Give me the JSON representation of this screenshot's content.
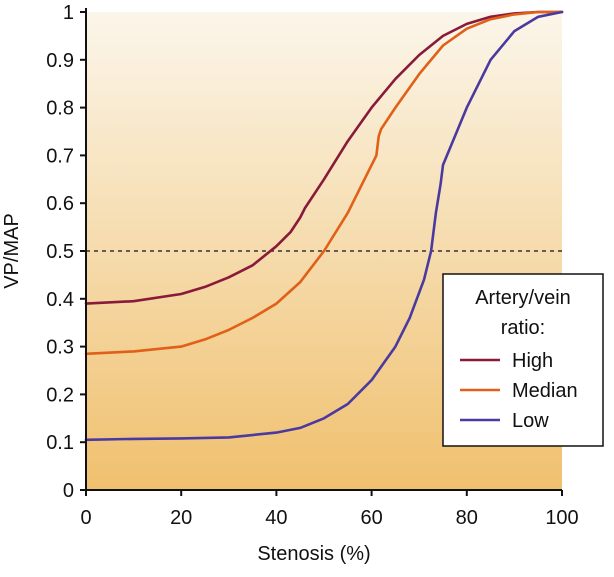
{
  "chart_data": {
    "type": "line",
    "title": "",
    "xlabel": "Stenosis (%)",
    "ylabel": "VP/MAP",
    "xlim": [
      0,
      100
    ],
    "ylim": [
      0,
      1
    ],
    "x_ticks": [
      "0",
      "20",
      "40",
      "60",
      "80",
      "100"
    ],
    "y_ticks": [
      "0",
      "0.1",
      "0.2",
      "0.3",
      "0.4",
      "0.5",
      "0.6",
      "0.7",
      "0.8",
      "0.9",
      "1"
    ],
    "reference_line": {
      "y": 0.5,
      "style": "dashed",
      "color": "#333333"
    },
    "grid": false,
    "legend": {
      "title_lines": [
        "Artery/vein",
        "ratio:"
      ],
      "position": "right",
      "entries": [
        "High",
        "Median",
        "Low"
      ]
    },
    "background": {
      "top": "#fbf6ea",
      "bottom": "#f0c06e"
    },
    "series": [
      {
        "name": "High",
        "color": "#8a1a3a",
        "x": [
          0,
          10,
          20,
          25,
          30,
          35,
          40,
          43,
          45,
          46,
          50,
          55,
          60,
          65,
          70,
          75,
          80,
          85,
          90,
          95,
          100
        ],
        "y": [
          0.39,
          0.395,
          0.41,
          0.425,
          0.445,
          0.47,
          0.51,
          0.54,
          0.57,
          0.59,
          0.65,
          0.73,
          0.8,
          0.86,
          0.91,
          0.95,
          0.975,
          0.99,
          0.997,
          1.0,
          1.0
        ]
      },
      {
        "name": "Median",
        "color": "#e06018",
        "x": [
          0,
          10,
          20,
          25,
          30,
          35,
          40,
          45,
          50,
          55,
          58,
          61,
          61.5,
          62,
          65,
          70,
          75,
          80,
          85,
          90,
          95,
          100
        ],
        "y": [
          0.285,
          0.29,
          0.3,
          0.315,
          0.335,
          0.36,
          0.39,
          0.435,
          0.5,
          0.58,
          0.64,
          0.7,
          0.74,
          0.755,
          0.8,
          0.87,
          0.93,
          0.965,
          0.985,
          0.995,
          1.0,
          1.0
        ]
      },
      {
        "name": "Low",
        "color": "#4a3aa0",
        "x": [
          0,
          10,
          20,
          30,
          40,
          45,
          50,
          55,
          60,
          65,
          68,
          71,
          72.5,
          73.5,
          74.5,
          75,
          80,
          85,
          90,
          95,
          100
        ],
        "y": [
          0.105,
          0.107,
          0.108,
          0.11,
          0.12,
          0.13,
          0.15,
          0.18,
          0.23,
          0.3,
          0.36,
          0.44,
          0.5,
          0.58,
          0.64,
          0.68,
          0.8,
          0.9,
          0.96,
          0.99,
          1.0
        ]
      }
    ]
  }
}
